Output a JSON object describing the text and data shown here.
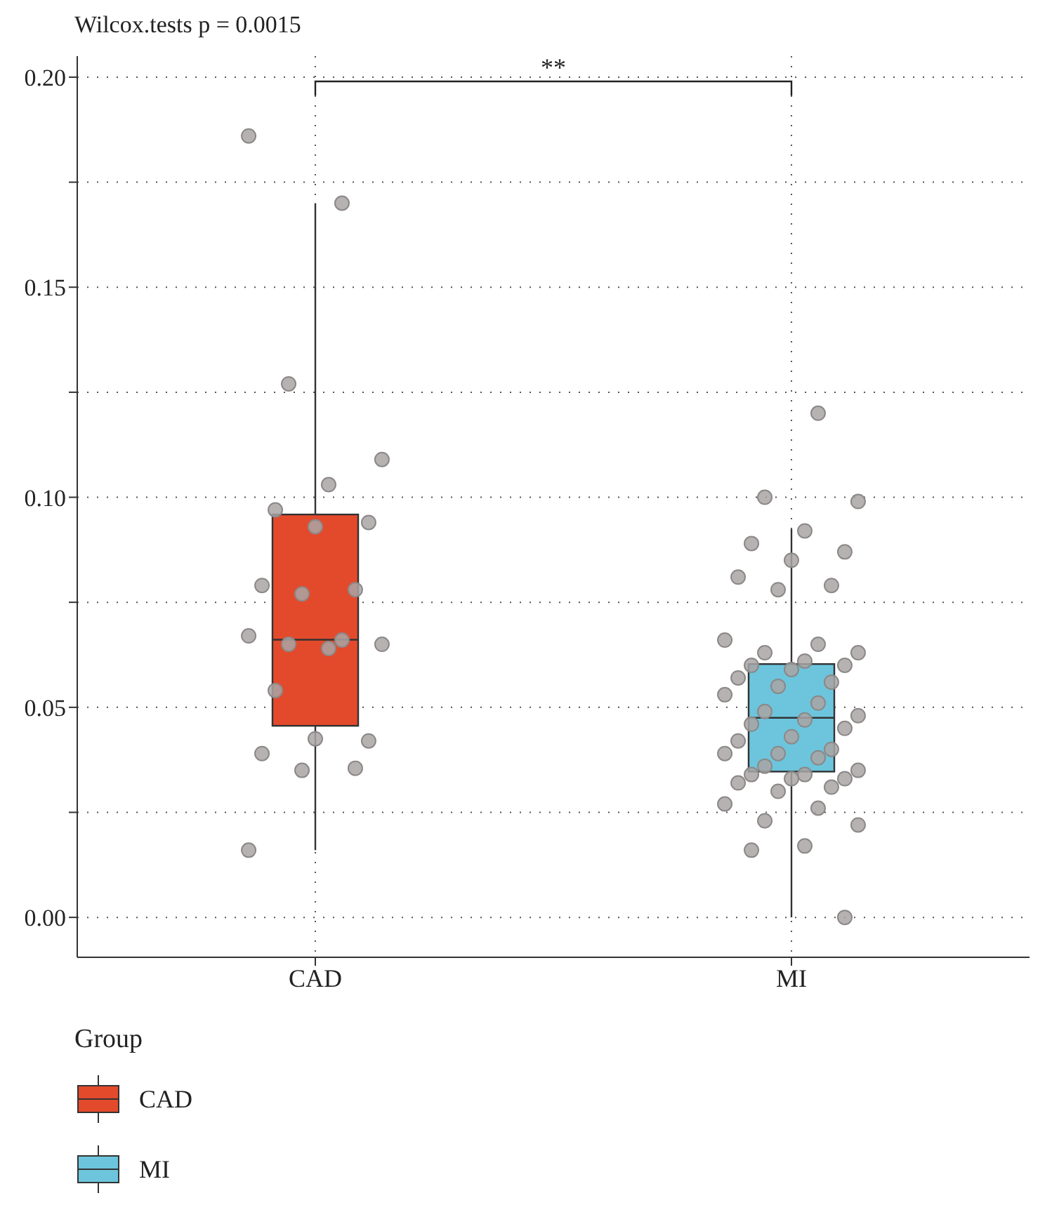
{
  "chart_data": {
    "type": "box",
    "title": "Wilcox.tests p = 0.0015",
    "legend_title": "Group",
    "categories": [
      "CAD",
      "MI"
    ],
    "series": [
      {
        "name": "CAD",
        "color": "#e34a2b",
        "boxes": [
          {
            "low": 0.016,
            "q1": 0.0456,
            "median": 0.0661,
            "q3": 0.0959,
            "high": 0.17
          },
          null
        ]
      },
      {
        "name": "MI",
        "color": "#6cc5dc",
        "boxes": [
          null,
          {
            "low": 0.0,
            "q1": 0.0347,
            "median": 0.0475,
            "q3": 0.0603,
            "high": 0.0924
          }
        ]
      },
      {
        "type": "scatter",
        "color": "#a9a5a5",
        "x": [
          "CAD",
          "CAD",
          "CAD",
          "CAD",
          "CAD",
          "CAD",
          "CAD",
          "CAD",
          "CAD",
          "CAD",
          "CAD",
          "CAD",
          "CAD",
          "CAD",
          "CAD",
          "CAD",
          "CAD",
          "CAD",
          "CAD",
          "CAD",
          "CAD",
          "CAD",
          "CAD",
          "MI",
          "MI",
          "MI",
          "MI",
          "MI",
          "MI",
          "MI",
          "MI",
          "MI",
          "MI",
          "MI",
          "MI",
          "MI",
          "MI",
          "MI",
          "MI",
          "MI",
          "MI",
          "MI",
          "MI",
          "MI",
          "MI",
          "MI",
          "MI",
          "MI",
          "MI",
          "MI",
          "MI",
          "MI",
          "MI",
          "MI",
          "MI",
          "MI",
          "MI",
          "MI",
          "MI",
          "MI",
          "MI",
          "MI",
          "MI",
          "MI",
          "MI",
          "MI",
          "MI",
          "MI",
          "MI",
          "MI",
          "MI",
          "MI",
          "MI"
        ],
        "values": [
          0.186,
          0.17,
          0.127,
          0.109,
          0.103,
          0.097,
          0.094,
          0.093,
          0.079,
          0.078,
          0.077,
          0.067,
          0.066,
          0.065,
          0.065,
          0.064,
          0.054,
          0.042,
          0.0425,
          0.039,
          0.0355,
          0.035,
          0.016,
          0.12,
          0.1,
          0.099,
          0.092,
          0.089,
          0.087,
          0.085,
          0.081,
          0.079,
          0.078,
          0.066,
          0.065,
          0.063,
          0.063,
          0.061,
          0.06,
          0.06,
          0.059,
          0.057,
          0.056,
          0.055,
          0.053,
          0.051,
          0.049,
          0.048,
          0.047,
          0.046,
          0.045,
          0.043,
          0.042,
          0.04,
          0.039,
          0.039,
          0.038,
          0.036,
          0.035,
          0.034,
          0.034,
          0.033,
          0.033,
          0.032,
          0.031,
          0.03,
          0.027,
          0.026,
          0.023,
          0.022,
          0.017,
          0.016,
          0.0
        ]
      }
    ],
    "ylim": [
      -0.0095,
      0.205
    ],
    "yticks": [
      {
        "value": 0,
        "label": "0.00"
      },
      {
        "value": 0.025,
        "label": null
      },
      {
        "value": 0.05,
        "label": "0.05"
      },
      {
        "value": 0.075,
        "label": null
      },
      {
        "value": 0.1,
        "label": "0.10"
      },
      {
        "value": 0.125,
        "label": null
      },
      {
        "value": 0.15,
        "label": "0.15"
      },
      {
        "value": 0.175,
        "label": null
      },
      {
        "value": 0.2,
        "label": "0.20"
      }
    ],
    "grid": true,
    "legend": "bottom left",
    "annotations": [
      "**"
    ]
  }
}
